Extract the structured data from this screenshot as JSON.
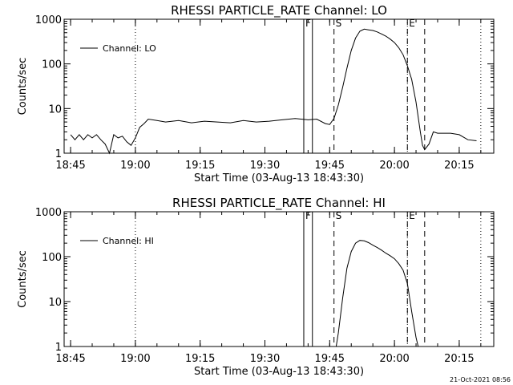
{
  "footer": {
    "timestamp": "21-Oct-2021 08:56"
  },
  "chart_data": [
    {
      "type": "line",
      "title": "RHESSI PARTICLE_RATE Channel: LO",
      "xlabel": "Start Time (03-Aug-13 18:43:30)",
      "ylabel": "Counts/sec",
      "y_scale": "log",
      "xlim": [
        "18:43:30",
        "20:23:00"
      ],
      "ylim": [
        1,
        1000
      ],
      "x_ticks": [
        "18:45",
        "19:00",
        "19:15",
        "19:30",
        "19:45",
        "20:00",
        "20:15"
      ],
      "y_ticks": [
        "1",
        "10",
        "100",
        "1000"
      ],
      "legend": {
        "position": "top-left",
        "entries": [
          "Channel: LO"
        ]
      },
      "series": [
        {
          "name": "Channel: LO",
          "x": [
            "18:45",
            "18:46",
            "18:47",
            "18:48",
            "18:49",
            "18:50",
            "18:51",
            "18:52",
            "18:53",
            "18:54",
            "18:55",
            "18:56",
            "18:57",
            "18:58",
            "18:59",
            "19:00",
            "19:01",
            "19:02",
            "19:03",
            "19:05",
            "19:07",
            "19:10",
            "19:13",
            "19:16",
            "19:19",
            "19:22",
            "19:25",
            "19:28",
            "19:31",
            "19:34",
            "19:37",
            "19:40",
            "19:42",
            "19:44",
            "19:45",
            "19:46",
            "19:47",
            "19:48",
            "19:49",
            "19:50",
            "19:51",
            "19:52",
            "19:53",
            "19:54",
            "19:55",
            "19:56",
            "19:57",
            "19:58",
            "19:59",
            "20:00",
            "20:01",
            "20:02",
            "20:03",
            "20:04",
            "20:05",
            "20:06",
            "20:06:30",
            "20:07",
            "20:08",
            "20:09",
            "20:10",
            "20:11",
            "20:13",
            "20:15",
            "20:17",
            "20:19"
          ],
          "values": [
            2.6,
            2.0,
            2.6,
            2.0,
            2.6,
            2.2,
            2.6,
            2.0,
            1.6,
            1.0,
            2.6,
            2.2,
            2.4,
            1.8,
            1.5,
            2.2,
            3.8,
            4.6,
            5.8,
            5.4,
            5.0,
            5.4,
            4.8,
            5.2,
            5.0,
            4.8,
            5.4,
            5.0,
            5.2,
            5.6,
            6.0,
            5.6,
            5.8,
            4.6,
            4.4,
            6.0,
            12,
            30,
            80,
            200,
            380,
            540,
            600,
            580,
            560,
            520,
            470,
            420,
            360,
            300,
            230,
            160,
            90,
            45,
            14,
            3,
            1.5,
            1.2,
            1.6,
            3.0,
            2.8,
            2.8,
            2.8,
            2.6,
            2.0,
            1.9
          ]
        }
      ],
      "markers": [
        {
          "label": "F",
          "style": "solid",
          "time": "19:39"
        },
        {
          "label": "",
          "style": "solid",
          "time": "19:41"
        },
        {
          "label": "S",
          "style": "dashed",
          "time": "19:46"
        },
        {
          "label": "E",
          "style": "dashed",
          "time": "20:03"
        },
        {
          "label": "",
          "style": "dashed",
          "time": "20:07"
        },
        {
          "label": "",
          "style": "dotted",
          "time": "19:00"
        },
        {
          "label": "",
          "style": "dotted",
          "time": "20:03"
        },
        {
          "label": "",
          "style": "dotted",
          "time": "20:20"
        }
      ]
    },
    {
      "type": "line",
      "title": "RHESSI PARTICLE_RATE Channel: HI",
      "xlabel": "Start Time (03-Aug-13 18:43:30)",
      "ylabel": "Counts/sec",
      "y_scale": "log",
      "xlim": [
        "18:43:30",
        "20:23:00"
      ],
      "ylim": [
        1,
        1000
      ],
      "x_ticks": [
        "18:45",
        "19:00",
        "19:15",
        "19:30",
        "19:45",
        "20:00",
        "20:15"
      ],
      "y_ticks": [
        "1",
        "10",
        "100",
        "1000"
      ],
      "legend": {
        "position": "top-left",
        "entries": [
          "Channel: HI"
        ]
      },
      "series": [
        {
          "name": "Channel: HI",
          "x": [
            "19:46:30",
            "19:47",
            "19:48",
            "19:49",
            "19:50",
            "19:51",
            "19:52",
            "19:53",
            "19:54",
            "19:55",
            "19:56",
            "19:57",
            "19:58",
            "19:59",
            "20:00",
            "20:01",
            "20:02",
            "20:03",
            "20:04",
            "20:05",
            "20:05:30"
          ],
          "values": [
            1,
            2,
            12,
            55,
            130,
            200,
            230,
            225,
            205,
            180,
            160,
            140,
            120,
            105,
            90,
            70,
            50,
            25,
            6,
            1.6,
            1
          ]
        }
      ],
      "markers": [
        {
          "label": "F",
          "style": "solid",
          "time": "19:39"
        },
        {
          "label": "",
          "style": "solid",
          "time": "19:41"
        },
        {
          "label": "S",
          "style": "dashed",
          "time": "19:46"
        },
        {
          "label": "E",
          "style": "dashed",
          "time": "20:03"
        },
        {
          "label": "",
          "style": "dashed",
          "time": "20:07"
        },
        {
          "label": "",
          "style": "dotted",
          "time": "19:00"
        },
        {
          "label": "",
          "style": "dotted",
          "time": "20:03"
        },
        {
          "label": "",
          "style": "dotted",
          "time": "20:20"
        }
      ]
    }
  ]
}
